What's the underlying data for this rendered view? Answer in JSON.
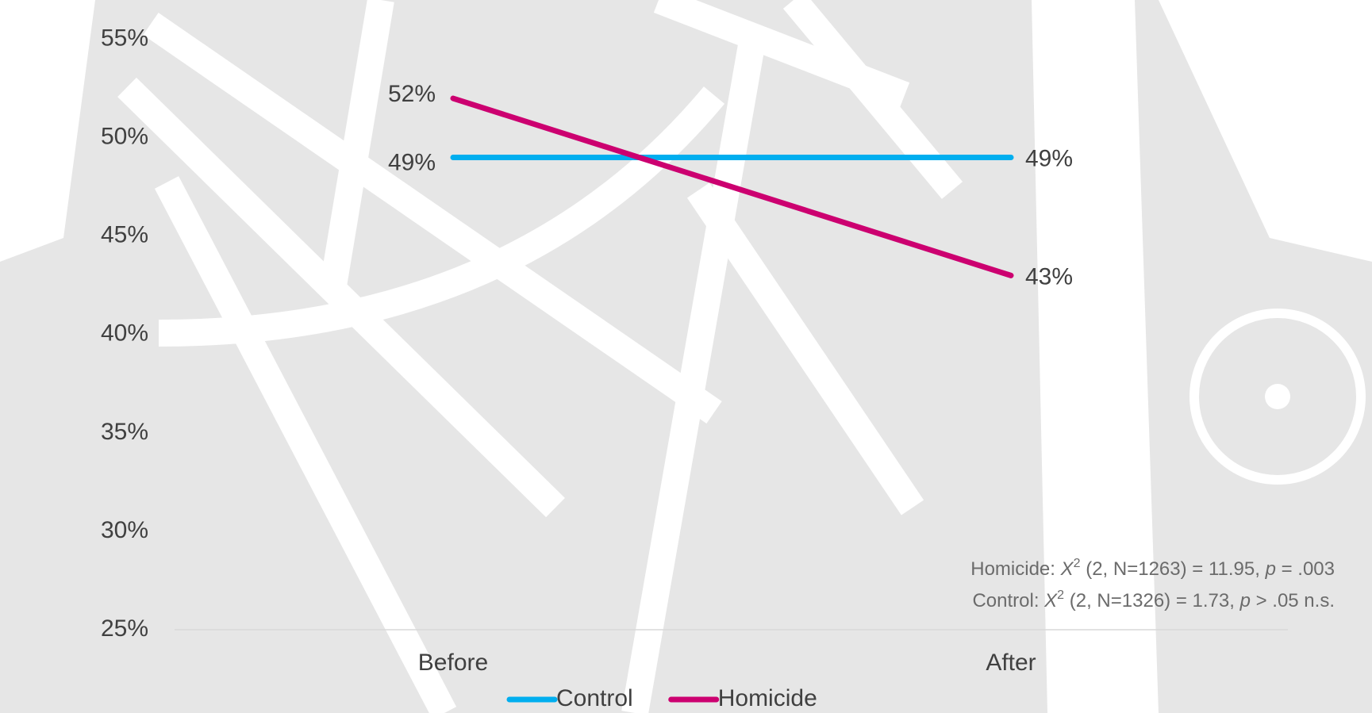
{
  "chart_data": {
    "type": "line",
    "categories": [
      "Before",
      "After"
    ],
    "series": [
      {
        "name": "Control",
        "color": "#00aeef",
        "values": [
          49,
          49
        ],
        "value_labels": [
          "49%",
          "49%"
        ]
      },
      {
        "name": "Homicide",
        "color": "#cc0070",
        "values": [
          52,
          43
        ],
        "value_labels": [
          "52%",
          "43%"
        ]
      }
    ],
    "ylim": [
      25,
      55
    ],
    "yticks": [
      {
        "value": 25,
        "label": "25%"
      },
      {
        "value": 30,
        "label": "30%"
      },
      {
        "value": 35,
        "label": "35%"
      },
      {
        "value": 40,
        "label": "40%"
      },
      {
        "value": 45,
        "label": "45%"
      },
      {
        "value": 50,
        "label": "50%"
      },
      {
        "value": 55,
        "label": "55%"
      }
    ],
    "grid": false,
    "legend": "bottom",
    "annotations": [
      {
        "parts": [
          "Homicide: ",
          "X",
          "2",
          " (2, N=1263) = 11.95, ",
          "p",
          " = .003"
        ]
      },
      {
        "parts": [
          "Control: ",
          "X",
          "2",
          " (2, N=1326) = 1.73, ",
          "p",
          " > .05 n.s."
        ]
      }
    ]
  }
}
